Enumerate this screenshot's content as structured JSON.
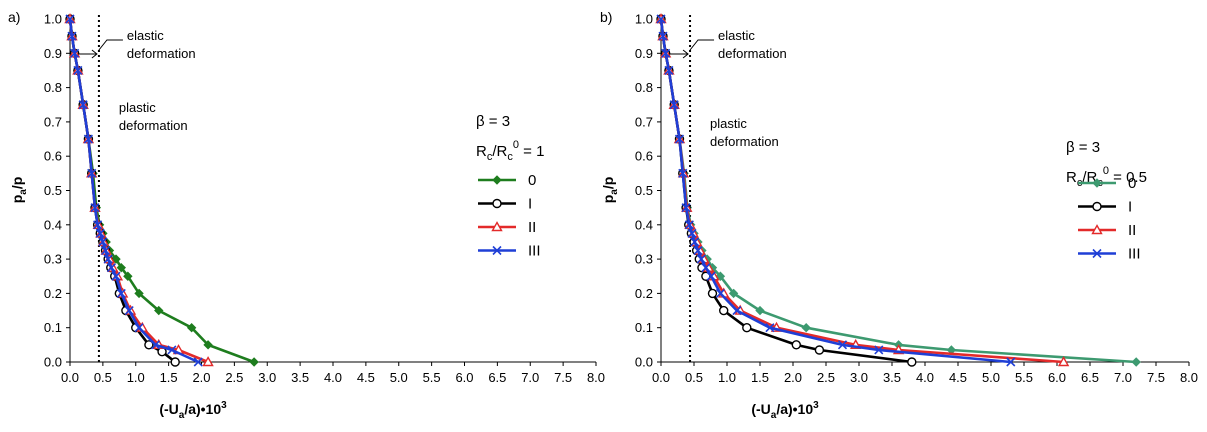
{
  "chart_data": [
    {
      "type": "line",
      "panel_label": "a)",
      "xlabel": [
        "(-U",
        "a",
        "/a)•10",
        "3"
      ],
      "ylabel": [
        "p",
        "a",
        "/p"
      ],
      "xlim": [
        0,
        8
      ],
      "ylim": [
        0,
        1
      ],
      "x_ticks": [
        "0.0",
        "0.5",
        "1.0",
        "1.5",
        "2.0",
        "2.5",
        "3.0",
        "3.5",
        "4.0",
        "4.5",
        "5.0",
        "5.5",
        "6.0",
        "6.5",
        "7.0",
        "7.5",
        "8.0"
      ],
      "y_ticks": [
        "0.0",
        "0.1",
        "0.2",
        "0.3",
        "0.4",
        "0.5",
        "0.6",
        "0.7",
        "0.8",
        "0.9",
        "1.0"
      ],
      "grid": false,
      "legend_position": "right",
      "annotations": {
        "elastic": [
          "elastic",
          "deformation"
        ],
        "plastic": [
          "plastic",
          "deformation"
        ],
        "beta": "β = 3",
        "rc_ratio": {
          "r": "R",
          "sub": "c",
          "mid": "/R",
          "sub2": "c",
          "sup": "0",
          "tail": " = 1"
        }
      },
      "boundary_x": 0.44,
      "series": [
        {
          "name": "0",
          "color": "#1e7d1e",
          "marker": "diamond",
          "x": [
            0.0,
            0.03,
            0.07,
            0.12,
            0.2,
            0.28,
            0.35,
            0.4,
            0.45,
            0.5,
            0.55,
            0.6,
            0.7,
            0.78,
            0.88,
            1.05,
            1.35,
            1.85,
            2.1,
            2.8
          ],
          "y": [
            1.0,
            0.95,
            0.9,
            0.85,
            0.75,
            0.65,
            0.55,
            0.45,
            0.4,
            0.375,
            0.35,
            0.325,
            0.3,
            0.275,
            0.25,
            0.2,
            0.15,
            0.1,
            0.05,
            0.0
          ]
        },
        {
          "name": "I",
          "color": "#000000",
          "marker": "circle",
          "x": [
            0.0,
            0.03,
            0.07,
            0.12,
            0.2,
            0.28,
            0.33,
            0.38,
            0.42,
            0.46,
            0.5,
            0.54,
            0.58,
            0.62,
            0.68,
            0.75,
            0.85,
            1.0,
            1.2,
            1.4,
            1.6
          ],
          "y": [
            1.0,
            0.95,
            0.9,
            0.85,
            0.75,
            0.65,
            0.55,
            0.45,
            0.4,
            0.375,
            0.35,
            0.325,
            0.3,
            0.275,
            0.25,
            0.2,
            0.15,
            0.1,
            0.05,
            0.03,
            0.0
          ]
        },
        {
          "name": "II",
          "color": "#e32a2a",
          "marker": "triangle",
          "x": [
            0.0,
            0.03,
            0.07,
            0.12,
            0.2,
            0.28,
            0.33,
            0.38,
            0.43,
            0.47,
            0.51,
            0.55,
            0.6,
            0.65,
            0.72,
            0.8,
            0.92,
            1.1,
            1.35,
            1.65,
            2.1
          ],
          "y": [
            1.0,
            0.95,
            0.9,
            0.85,
            0.75,
            0.65,
            0.55,
            0.45,
            0.4,
            0.375,
            0.35,
            0.325,
            0.3,
            0.275,
            0.25,
            0.2,
            0.15,
            0.1,
            0.05,
            0.035,
            0.0
          ]
        },
        {
          "name": "III",
          "color": "#1f3fd6",
          "marker": "x",
          "x": [
            0.0,
            0.03,
            0.07,
            0.12,
            0.2,
            0.28,
            0.33,
            0.38,
            0.42,
            0.46,
            0.5,
            0.54,
            0.58,
            0.63,
            0.7,
            0.78,
            0.9,
            1.05,
            1.3,
            1.55,
            1.95
          ],
          "y": [
            1.0,
            0.95,
            0.9,
            0.85,
            0.75,
            0.65,
            0.55,
            0.45,
            0.4,
            0.375,
            0.35,
            0.325,
            0.3,
            0.275,
            0.25,
            0.2,
            0.15,
            0.1,
            0.05,
            0.035,
            0.0
          ]
        }
      ]
    },
    {
      "type": "line",
      "panel_label": "b)",
      "xlabel": [
        "(-U",
        "a",
        "/a)•10",
        "3"
      ],
      "ylabel": [
        "p",
        "a",
        "/p"
      ],
      "xlim": [
        0,
        8
      ],
      "ylim": [
        0,
        1
      ],
      "x_ticks": [
        "0.0",
        "0.5",
        "1.0",
        "1.5",
        "2.0",
        "2.5",
        "3.0",
        "3.5",
        "4.0",
        "4.5",
        "5.0",
        "5.5",
        "6.0",
        "6.5",
        "7.0",
        "7.5",
        "8.0"
      ],
      "y_ticks": [
        "0.0",
        "0.1",
        "0.2",
        "0.3",
        "0.4",
        "0.5",
        "0.6",
        "0.7",
        "0.8",
        "0.9",
        "1.0"
      ],
      "grid": false,
      "legend_position": "right",
      "annotations": {
        "elastic": [
          "elastic",
          "deformation"
        ],
        "plastic": [
          "plastic",
          "deformation"
        ],
        "beta": "β = 3",
        "rc_ratio": {
          "r": "R",
          "sub": "c",
          "mid": "/R",
          "sub2": "c",
          "sup": "0",
          "tail": " = 0.5"
        }
      },
      "boundary_x": 0.44,
      "series": [
        {
          "name": "0",
          "color": "#3d9a70",
          "marker": "diamond",
          "x": [
            0.0,
            0.03,
            0.07,
            0.12,
            0.2,
            0.28,
            0.35,
            0.4,
            0.45,
            0.5,
            0.56,
            0.62,
            0.7,
            0.78,
            0.9,
            1.1,
            1.5,
            2.2,
            3.6,
            4.4,
            7.2
          ],
          "y": [
            1.0,
            0.95,
            0.9,
            0.85,
            0.75,
            0.65,
            0.55,
            0.45,
            0.4,
            0.375,
            0.35,
            0.325,
            0.3,
            0.275,
            0.25,
            0.2,
            0.15,
            0.1,
            0.05,
            0.035,
            0.0
          ]
        },
        {
          "name": "I",
          "color": "#000000",
          "marker": "circle",
          "x": [
            0.0,
            0.03,
            0.07,
            0.12,
            0.2,
            0.28,
            0.33,
            0.38,
            0.42,
            0.46,
            0.5,
            0.54,
            0.58,
            0.62,
            0.68,
            0.78,
            0.95,
            1.3,
            2.05,
            2.4,
            3.8
          ],
          "y": [
            1.0,
            0.95,
            0.9,
            0.85,
            0.75,
            0.65,
            0.55,
            0.45,
            0.4,
            0.375,
            0.35,
            0.325,
            0.3,
            0.275,
            0.25,
            0.2,
            0.15,
            0.1,
            0.05,
            0.035,
            0.0
          ]
        },
        {
          "name": "II",
          "color": "#e32a2a",
          "marker": "triangle",
          "x": [
            0.0,
            0.03,
            0.07,
            0.12,
            0.2,
            0.28,
            0.34,
            0.39,
            0.44,
            0.49,
            0.54,
            0.59,
            0.65,
            0.72,
            0.8,
            0.95,
            1.2,
            1.75,
            2.95,
            3.6,
            6.1
          ],
          "y": [
            1.0,
            0.95,
            0.9,
            0.85,
            0.75,
            0.65,
            0.55,
            0.45,
            0.4,
            0.375,
            0.35,
            0.325,
            0.3,
            0.275,
            0.25,
            0.2,
            0.15,
            0.1,
            0.05,
            0.035,
            0.0
          ]
        },
        {
          "name": "III",
          "color": "#1f3fd6",
          "marker": "x",
          "x": [
            0.0,
            0.03,
            0.07,
            0.12,
            0.2,
            0.28,
            0.33,
            0.38,
            0.43,
            0.47,
            0.51,
            0.56,
            0.61,
            0.68,
            0.76,
            0.9,
            1.15,
            1.65,
            2.75,
            3.3,
            5.3
          ],
          "y": [
            1.0,
            0.95,
            0.9,
            0.85,
            0.75,
            0.65,
            0.55,
            0.45,
            0.4,
            0.375,
            0.35,
            0.325,
            0.3,
            0.275,
            0.25,
            0.2,
            0.15,
            0.1,
            0.05,
            0.035,
            0.0
          ]
        }
      ]
    }
  ]
}
